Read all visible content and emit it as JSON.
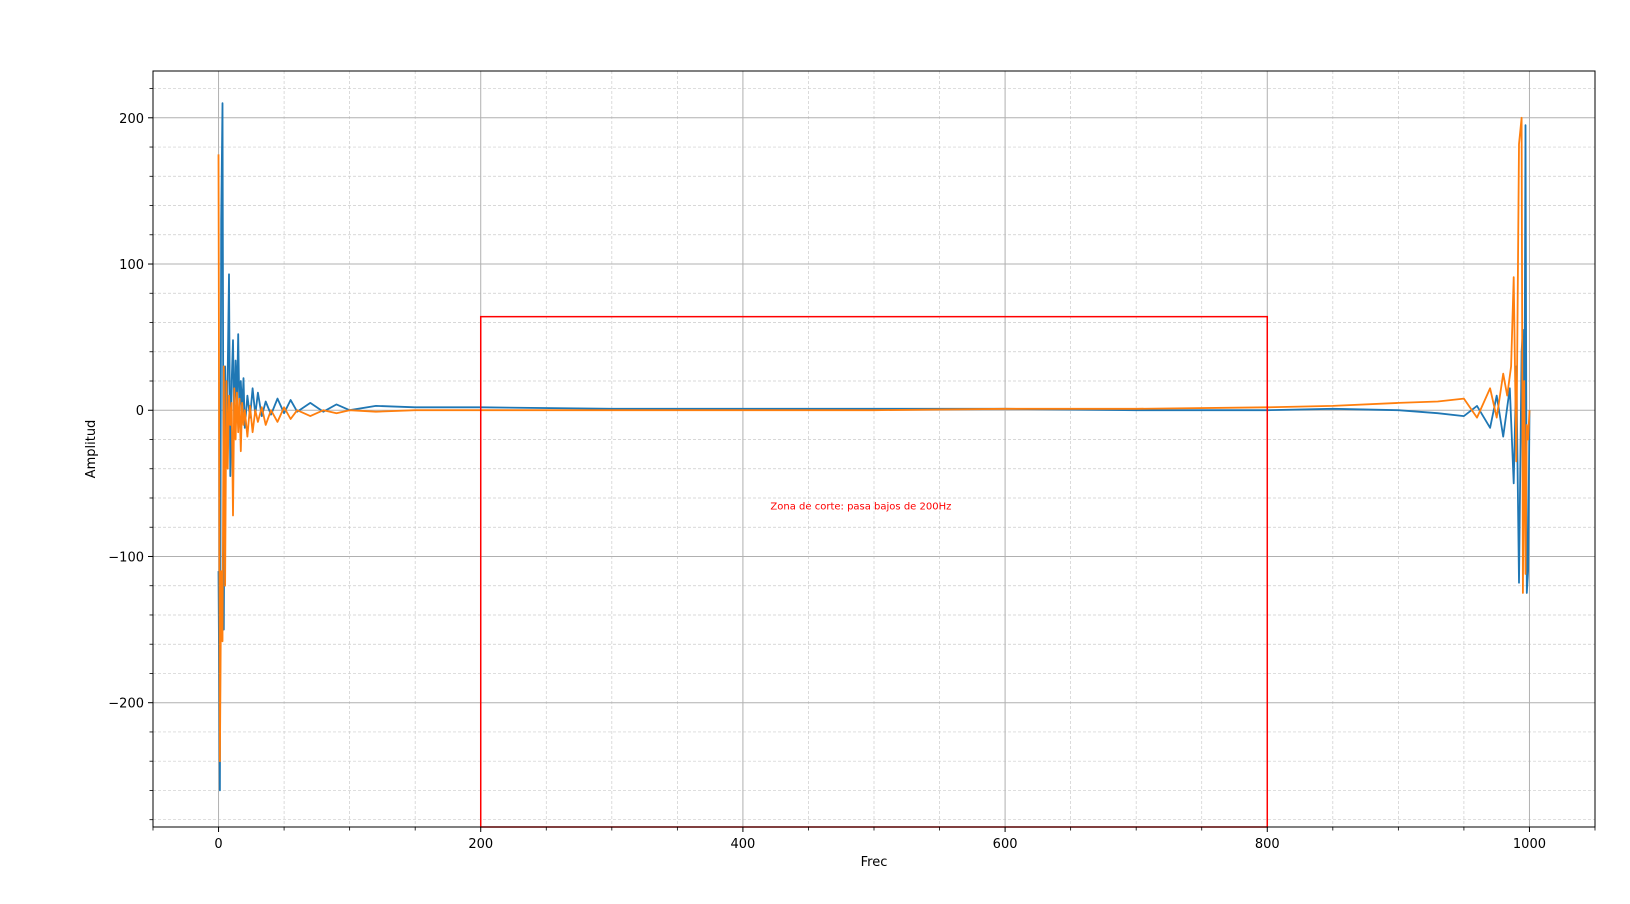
{
  "chart_data": {
    "type": "line",
    "title": "",
    "xlabel": "Frec",
    "ylabel": "Amplitud",
    "xlim": [
      -50,
      1050
    ],
    "ylim": [
      -285,
      232
    ],
    "xticks": [
      0,
      200,
      400,
      600,
      800,
      1000
    ],
    "xtick_labels": [
      "0",
      "200",
      "400",
      "600",
      "800",
      "1000"
    ],
    "yticks": [
      -200,
      -100,
      0,
      100,
      200
    ],
    "ytick_labels": [
      "−200",
      "−100",
      "0",
      "100",
      "200"
    ],
    "grid": "major and minor",
    "series": [
      {
        "color": "#1f77b4",
        "x": [
          0,
          1,
          2,
          3,
          4,
          5,
          6,
          7,
          8,
          9,
          10,
          11,
          12,
          13,
          14,
          15,
          16,
          17,
          18,
          19,
          20,
          22,
          24,
          26,
          28,
          30,
          33,
          36,
          40,
          45,
          50,
          55,
          60,
          70,
          80,
          90,
          100,
          120,
          150,
          200,
          300,
          400,
          500,
          600,
          700,
          800,
          850,
          900,
          930,
          950,
          960,
          970,
          975,
          980,
          985,
          988,
          990,
          992,
          994,
          995,
          996,
          997,
          998,
          999,
          1000
        ],
        "values": [
          -110,
          -260,
          130,
          210,
          -150,
          30,
          -30,
          25,
          93,
          -45,
          20,
          48,
          -10,
          34,
          5,
          52,
          -5,
          20,
          0,
          22,
          -12,
          10,
          -5,
          15,
          -3,
          12,
          -4,
          6,
          -3,
          8,
          -2,
          7,
          -1,
          5,
          -1,
          4,
          0,
          3,
          2,
          2,
          1,
          1,
          1,
          1,
          0,
          0,
          1,
          0,
          -2,
          -4,
          3,
          -12,
          10,
          -18,
          15,
          -50,
          30,
          -118,
          40,
          55,
          -60,
          195,
          -125,
          -110,
          0
        ]
      },
      {
        "color": "#ff7f0e",
        "x": [
          0,
          1,
          2,
          3,
          4,
          5,
          6,
          7,
          8,
          9,
          10,
          11,
          12,
          13,
          14,
          15,
          16,
          17,
          18,
          19,
          20,
          22,
          24,
          26,
          28,
          30,
          33,
          36,
          40,
          45,
          50,
          55,
          60,
          70,
          80,
          90,
          100,
          120,
          150,
          200,
          300,
          400,
          500,
          600,
          700,
          800,
          850,
          900,
          930,
          950,
          960,
          970,
          975,
          980,
          983,
          986,
          988,
          990,
          992,
          994,
          995,
          996,
          997,
          998,
          999,
          1000
        ],
        "values": [
          175,
          -240,
          -110,
          -158,
          30,
          -120,
          20,
          -40,
          10,
          -10,
          5,
          -72,
          15,
          -20,
          12,
          -15,
          8,
          -28,
          5,
          -10,
          0,
          -18,
          3,
          -15,
          0,
          -8,
          2,
          -10,
          0,
          -8,
          2,
          -6,
          0,
          -4,
          0,
          -2,
          0,
          -1,
          0,
          0,
          0,
          0,
          0,
          1,
          1,
          2,
          3,
          5,
          6,
          8,
          -5,
          15,
          -5,
          25,
          10,
          30,
          91,
          -35,
          182,
          200,
          -125,
          20,
          -112,
          -10,
          -20,
          0
        ]
      }
    ],
    "annotation": {
      "type": "rectangle",
      "x_range": [
        200,
        800
      ],
      "y_range": [
        -285,
        64
      ],
      "color": "#ff0000",
      "text": "Zona de corte: pasa bajos de 200Hz",
      "text_x": 490,
      "text_y": -68
    }
  }
}
